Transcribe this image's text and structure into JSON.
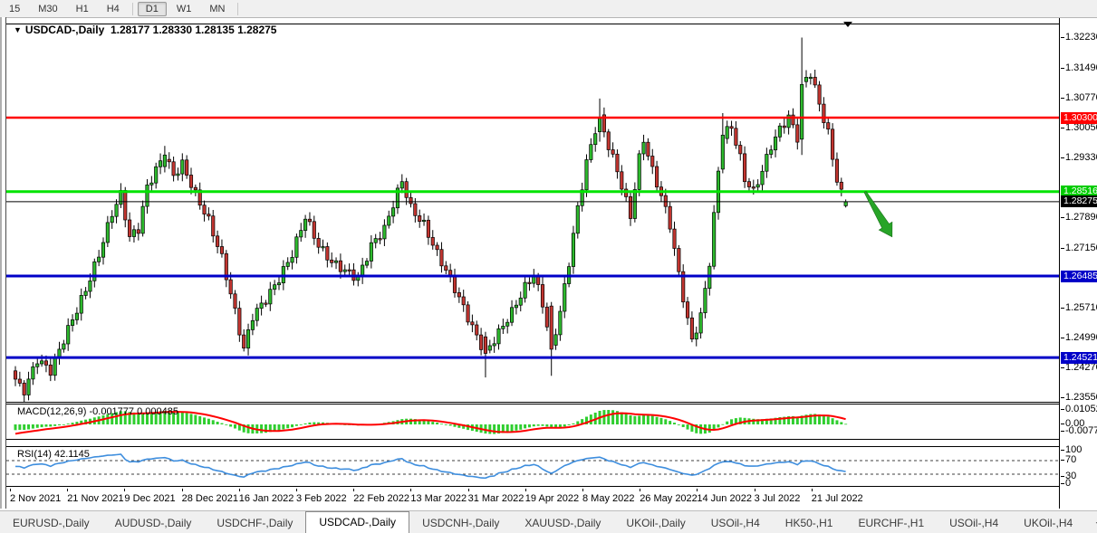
{
  "toolbar": {
    "timeframes": [
      "15",
      "M30",
      "H1",
      "H4",
      "D1",
      "W1",
      "MN"
    ],
    "active_timeframe": "D1"
  },
  "chart": {
    "symbol_label": "USDCAD-,Daily",
    "dropdown_arrow": "▼",
    "ohlc_text": "1.28177 1.28330 1.28135 1.28275",
    "open": "1.28177",
    "high": "1.28330",
    "low": "1.28135",
    "close": "1.28275",
    "up_color": "#2DB92D",
    "down_color": "#C23530",
    "wick_color": "#000000",
    "levels": [
      {
        "name": "resistance-line",
        "price": 1.303,
        "color": "#FF0000",
        "width": 2.4,
        "badge_bg": "#FF0000",
        "badge_text": "1.30300"
      },
      {
        "name": "support-green-line",
        "price": 1.28516,
        "color": "#00E400",
        "width": 3,
        "badge_bg": "#00CC00",
        "badge_text": "1.28516"
      },
      {
        "name": "current-price-line",
        "price": 1.28275,
        "color": "#000000",
        "width": 1,
        "badge_bg": "#000000",
        "badge_text": "1.28275"
      },
      {
        "name": "support-blue-line-1",
        "price": 1.26485,
        "color": "#0000C8",
        "width": 3,
        "badge_bg": "#0000C8",
        "badge_text": "1.26485"
      },
      {
        "name": "support-blue-line-2",
        "price": 1.24521,
        "color": "#0000C8",
        "width": 3,
        "badge_bg": "#0000C8",
        "badge_text": "1.24521"
      }
    ],
    "price_axis_ticks": [
      1.3223,
      1.3149,
      1.3077,
      1.3005,
      1.2933,
      1.2789,
      1.2715,
      1.2571,
      1.2499,
      1.2427,
      1.2355
    ],
    "date_axis_labels": [
      "2 Nov 2021",
      "21 Nov 2021",
      "9 Dec 2021",
      "28 Dec 2021",
      "16 Jan 2022",
      "3 Feb 2022",
      "22 Feb 2022",
      "13 Mar 2022",
      "31 Mar 2022",
      "19 Apr 2022",
      "8 May 2022",
      "26 May 2022",
      "14 Jun 2022",
      "3 Jul 2022",
      "21 Jul 2022"
    ],
    "annotation_arrow_color": "#28A428",
    "candles": {
      "count": 190,
      "close_waypoints": [
        [
          0,
          1.24
        ],
        [
          2,
          1.2372
        ],
        [
          5,
          1.2448
        ],
        [
          8,
          1.242
        ],
        [
          12,
          1.252
        ],
        [
          16,
          1.2615
        ],
        [
          19,
          1.27
        ],
        [
          22,
          1.28
        ],
        [
          24,
          1.2845
        ],
        [
          26,
          1.2742
        ],
        [
          28,
          1.2762
        ],
        [
          30,
          1.2862
        ],
        [
          32,
          1.2905
        ],
        [
          34,
          1.294
        ],
        [
          36,
          1.289
        ],
        [
          38,
          1.2918
        ],
        [
          41,
          1.2845
        ],
        [
          44,
          1.2782
        ],
        [
          47,
          1.2692
        ],
        [
          50,
          1.2562
        ],
        [
          52,
          1.2472
        ],
        [
          54,
          1.2552
        ],
        [
          57,
          1.2592
        ],
        [
          60,
          1.2642
        ],
        [
          63,
          1.2702
        ],
        [
          66,
          1.2792
        ],
        [
          69,
          1.2722
        ],
        [
          72,
          1.2682
        ],
        [
          75,
          1.2662
        ],
        [
          78,
          1.2642
        ],
        [
          81,
          1.2722
        ],
        [
          84,
          1.2762
        ],
        [
          86,
          1.2822
        ],
        [
          88,
          1.2878
        ],
        [
          90,
          1.2812
        ],
        [
          93,
          1.2772
        ],
        [
          96,
          1.2702
        ],
        [
          99,
          1.2642
        ],
        [
          102,
          1.2572
        ],
        [
          105,
          1.2502
        ],
        [
          107,
          1.2462
        ],
        [
          110,
          1.2512
        ],
        [
          113,
          1.2562
        ],
        [
          116,
          1.2622
        ],
        [
          118,
          1.2652
        ],
        [
          120,
          1.2582
        ],
        [
          122,
          1.2472
        ],
        [
          124,
          1.2562
        ],
        [
          126,
          1.2682
        ],
        [
          128,
          1.2812
        ],
        [
          130,
          1.2922
        ],
        [
          132,
          1.3002
        ],
        [
          133,
          1.3028
        ],
        [
          135,
          1.2962
        ],
        [
          137,
          1.2902
        ],
        [
          140,
          1.2792
        ],
        [
          142,
          1.2932
        ],
        [
          143,
          1.2978
        ],
        [
          145,
          1.2902
        ],
        [
          147,
          1.2842
        ],
        [
          149,
          1.2772
        ],
        [
          151,
          1.2652
        ],
        [
          153,
          1.2542
        ],
        [
          154,
          1.2492
        ],
        [
          156,
          1.2552
        ],
        [
          158,
          1.2682
        ],
        [
          160,
          1.2902
        ],
        [
          161,
          1.2988
        ],
        [
          163,
          1.3008
        ],
        [
          165,
          1.2932
        ],
        [
          166,
          1.2882
        ],
        [
          168,
          1.2852
        ],
        [
          170,
          1.2902
        ],
        [
          172,
          1.2962
        ],
        [
          174,
          1.3002
        ],
        [
          176,
          1.3032
        ],
        [
          178,
          1.2982
        ],
        [
          179,
          1.311
        ],
        [
          181,
          1.3138
        ],
        [
          183,
          1.3062
        ],
        [
          185,
          1.2992
        ],
        [
          186,
          1.2932
        ],
        [
          187,
          1.2882
        ],
        [
          188,
          1.2852
        ],
        [
          189,
          1.28275
        ]
      ],
      "explicit_ohlc": {
        "34": [
          1.2912,
          1.2962,
          1.2898,
          1.294
        ],
        "107": [
          1.2502,
          1.2514,
          1.2404,
          1.2462
        ],
        "122": [
          1.2576,
          1.2586,
          1.2408,
          1.2472
        ],
        "133": [
          1.2996,
          1.3076,
          1.2972,
          1.3028
        ],
        "161": [
          1.2906,
          1.3041,
          1.2896,
          1.2988
        ],
        "179": [
          1.2978,
          1.3223,
          1.294,
          1.311
        ],
        "189": [
          1.28177,
          1.2833,
          1.28135,
          1.28275
        ]
      }
    }
  },
  "macd": {
    "label": "MACD(12,26,9)",
    "values_text": "-0.001777 0.000485",
    "axis_ticks": [
      "0.01052",
      "0.00",
      "-0.00774"
    ],
    "histogram_color": "#2FCE2F",
    "signal_color": "#FF0000"
  },
  "rsi": {
    "label": "RSI(14)",
    "value_text": "42.1145",
    "axis_ticks": [
      "100",
      "70",
      "30",
      "0"
    ],
    "levels": [
      70,
      30
    ],
    "line_color": "#3E8EDE"
  },
  "tabbar": {
    "labels": [
      "EURUSD-,Daily",
      "AUDUSD-,Daily",
      "USDCHF-,Daily",
      "USDCAD-,Daily",
      "USDCNH-,Daily",
      "XAUUSD-,Daily",
      "UKOil-,Daily",
      "USOil-,H4",
      "HK50-,H1",
      "EURCHF-,H1",
      "USOil-,H4",
      "UKOil-,H4"
    ],
    "active_index": 3,
    "scroll_left": "◄",
    "scroll_right": "►"
  }
}
